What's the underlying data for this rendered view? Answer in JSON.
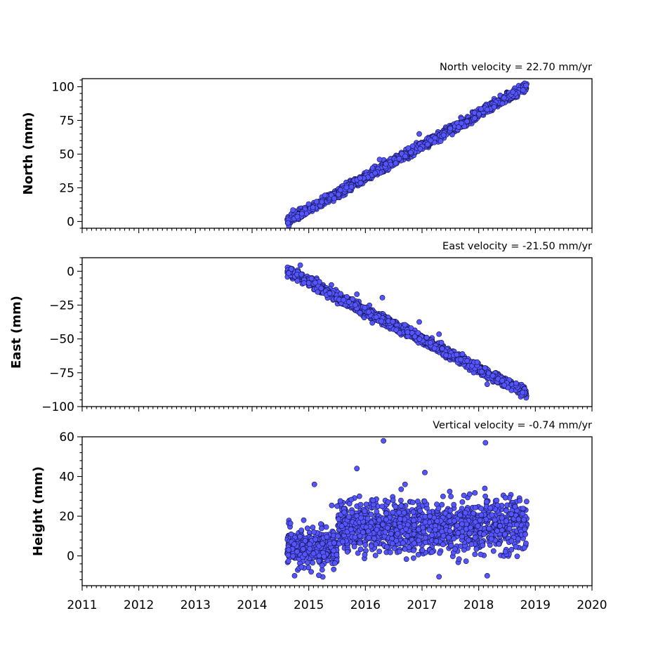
{
  "chart_data": [
    {
      "type": "scatter",
      "title": "North velocity = 22.70 mm/yr",
      "ylabel": "North (mm)",
      "xlim": [
        2011,
        2020
      ],
      "ylim": [
        -5,
        106
      ],
      "yticks": [
        0,
        25,
        50,
        75,
        100
      ],
      "ytick_labels": [
        "0",
        "25",
        "50",
        "75",
        "100"
      ],
      "marker_color": "#5555ff",
      "trend": {
        "start_year": 2014.62,
        "end_year": 2018.85,
        "start_value": 0,
        "end_value": 100,
        "noise_mm": 1.6,
        "n_points": 1500
      },
      "outliers": [
        {
          "x": 2014.72,
          "y": 8.5
        },
        {
          "x": 2016.95,
          "y": 65
        },
        {
          "x": 2016.25,
          "y": 46
        },
        {
          "x": 2018.15,
          "y": 83
        }
      ]
    },
    {
      "type": "scatter",
      "title": "East velocity = -21.50 mm/yr",
      "ylabel": "East (mm)",
      "xlim": [
        2011,
        2020
      ],
      "ylim": [
        -100,
        10
      ],
      "yticks": [
        -100,
        -75,
        -50,
        -25,
        0
      ],
      "ytick_labels": [
        "−100",
        "−75",
        "−50",
        "−25",
        "0"
      ],
      "marker_color": "#5555ff",
      "trend": {
        "start_year": 2014.62,
        "end_year": 2018.85,
        "start_value": 0,
        "end_value": -90,
        "noise_mm": 1.8,
        "n_points": 1500
      },
      "outliers": [
        {
          "x": 2014.85,
          "y": 4.5
        },
        {
          "x": 2015.85,
          "y": -17
        },
        {
          "x": 2016.3,
          "y": -19.5
        },
        {
          "x": 2016.95,
          "y": -37.5
        },
        {
          "x": 2017.3,
          "y": -46.5
        },
        {
          "x": 2018.15,
          "y": -83.5
        }
      ]
    },
    {
      "type": "scatter",
      "title": "Vertical velocity = -0.74 mm/yr",
      "ylabel": "Height (mm)",
      "xlim": [
        2011,
        2020
      ],
      "ylim": [
        -15,
        60
      ],
      "yticks": [
        0,
        20,
        40,
        60
      ],
      "ytick_labels": [
        "0",
        "20",
        "40",
        "60"
      ],
      "xticks": [
        2011,
        2012,
        2013,
        2014,
        2015,
        2016,
        2017,
        2018,
        2019,
        2020
      ],
      "xtick_labels": [
        "2011",
        "2012",
        "2013",
        "2014",
        "2015",
        "2016",
        "2017",
        "2018",
        "2019",
        "2020"
      ],
      "marker_color": "#5555ff",
      "segments": [
        {
          "start_year": 2014.62,
          "end_year": 2015.5,
          "mean": 4,
          "spread": 5,
          "n_points": 330
        },
        {
          "start_year": 2015.5,
          "end_year": 2018.85,
          "mean": 15,
          "spread": 6.5,
          "n_points": 1200
        }
      ],
      "outliers": [
        {
          "x": 2016.32,
          "y": 58
        },
        {
          "x": 2018.12,
          "y": 57
        },
        {
          "x": 2015.1,
          "y": 36
        },
        {
          "x": 2015.85,
          "y": 44
        },
        {
          "x": 2017.05,
          "y": 42
        },
        {
          "x": 2017.3,
          "y": -10.5
        },
        {
          "x": 2018.15,
          "y": -10
        },
        {
          "x": 2014.75,
          "y": -10
        },
        {
          "x": 2016.7,
          "y": 36
        }
      ]
    }
  ]
}
